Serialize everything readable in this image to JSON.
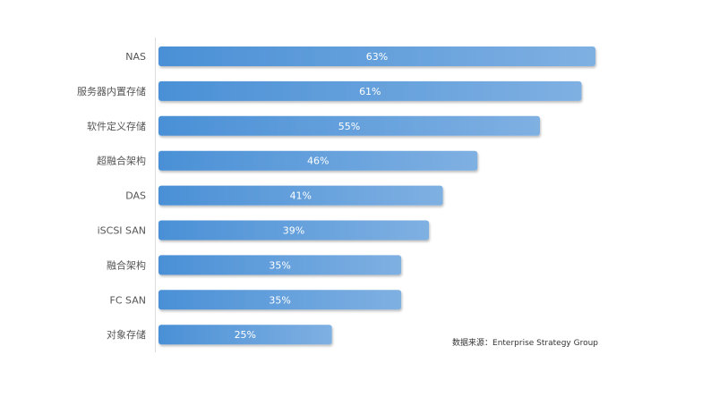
{
  "chart_data": {
    "type": "bar",
    "orientation": "horizontal",
    "categories": [
      "NAS",
      "服务器内置存储",
      "软件定义存储",
      "超融合架构",
      "DAS",
      "iSCSI SAN",
      "融合架构",
      "FC SAN",
      "对象存储"
    ],
    "values": [
      63,
      61,
      55,
      46,
      41,
      39,
      35,
      35,
      25
    ],
    "value_labels": [
      "63%",
      "61%",
      "55%",
      "46%",
      "41%",
      "39%",
      "35%",
      "35%",
      "25%"
    ],
    "title": "",
    "xlabel": "",
    "ylabel": "",
    "xlim": [
      0,
      100
    ],
    "grid": false,
    "legend": "none",
    "colors": {
      "bar_start": "#4a90d6",
      "bar_end": "#7fb0e2",
      "axis": "#dddddd"
    }
  },
  "source_note": "数据来源：Enterprise Strategy Group"
}
